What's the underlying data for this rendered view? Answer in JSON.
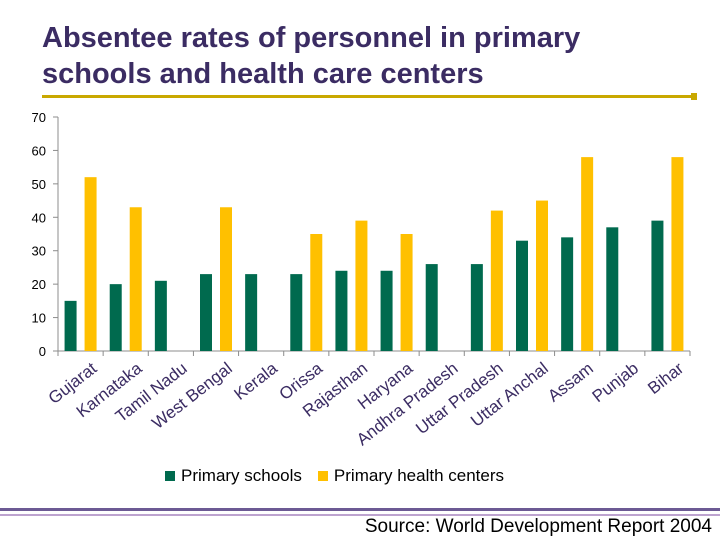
{
  "chart_data": {
    "type": "bar",
    "title": "Absentee rates of personnel in primary schools and health care centers",
    "categories": [
      "Gujarat",
      "Karnataka",
      "Tamil Nadu",
      "West Bengal",
      "Kerala",
      "Orissa",
      "Rajasthan",
      "Haryana",
      "Andhra Pradesh",
      "Uttar Pradesh",
      "Uttar Anchal",
      "Assam",
      "Punjab",
      "Bihar"
    ],
    "series": [
      {
        "name": "Primary schools",
        "color": "#006a4e",
        "values": [
          15,
          20,
          21,
          23,
          23,
          23,
          24,
          24,
          26,
          26,
          33,
          34,
          37,
          39
        ]
      },
      {
        "name": "Primary health centers",
        "color": "#ffc000",
        "values": [
          52,
          43,
          null,
          43,
          null,
          35,
          39,
          35,
          null,
          42,
          45,
          58,
          null,
          58
        ]
      }
    ],
    "ylim": [
      0,
      70
    ],
    "yticks": [
      0,
      10,
      20,
      30,
      40,
      50,
      60,
      70
    ],
    "xlabel": "",
    "ylabel": "",
    "grid": false,
    "legend": "bottom"
  },
  "source": "Source: World Development Report 2004"
}
